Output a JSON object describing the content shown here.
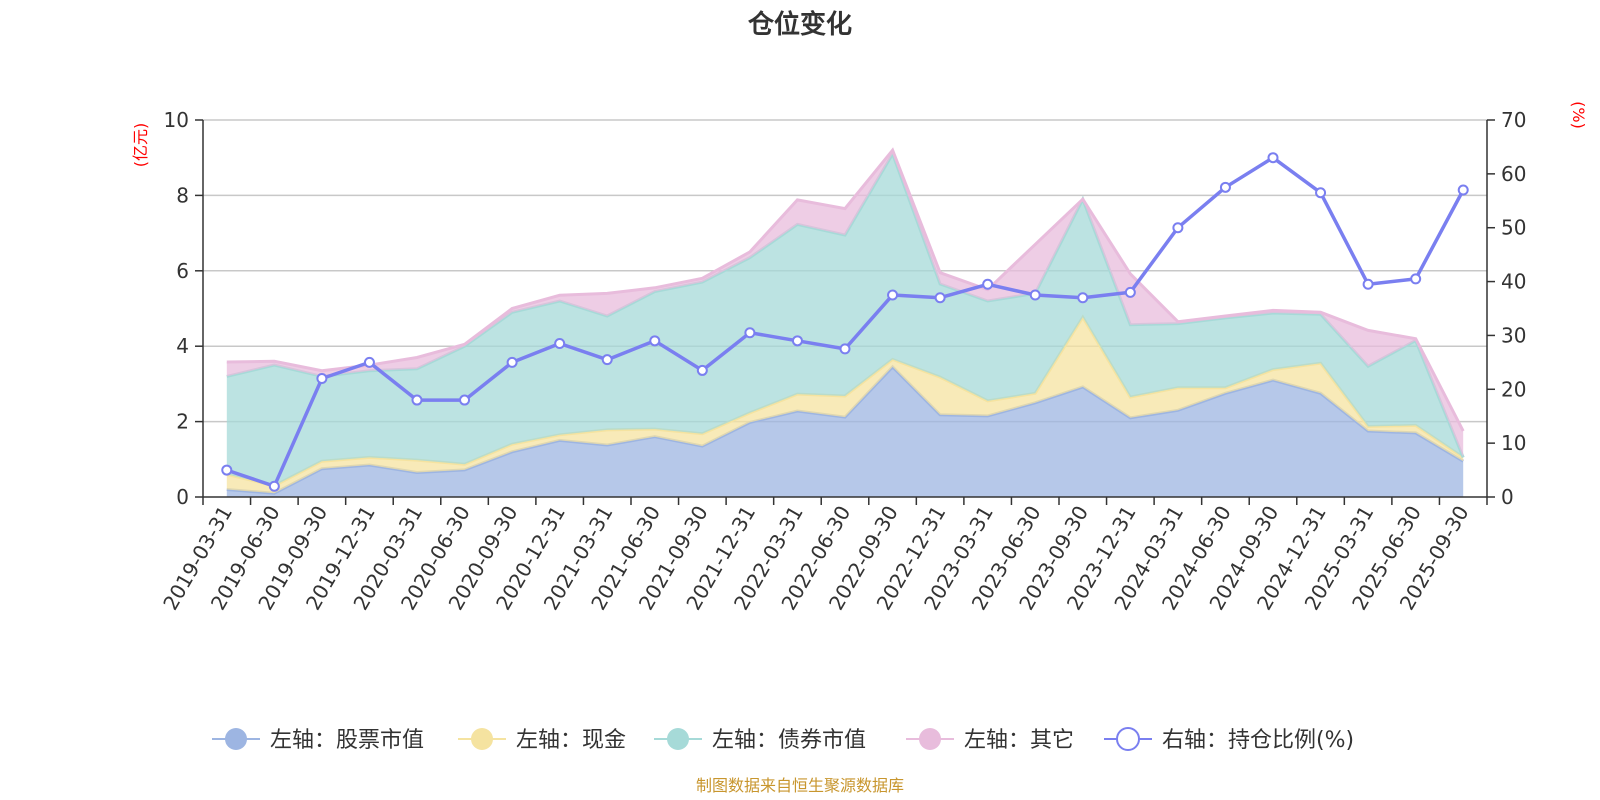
{
  "chart_data": {
    "type": "area",
    "title": "仓位变化",
    "left_axis_unit": "(亿元)",
    "right_axis_unit": "(%)",
    "ylim_left": [
      0,
      10
    ],
    "yticks_left": [
      0,
      2,
      4,
      6,
      8,
      10
    ],
    "ylim_right": [
      0,
      70
    ],
    "yticks_right": [
      0,
      10,
      20,
      30,
      40,
      50,
      60,
      70
    ],
    "categories": [
      "2019-03-31",
      "2019-06-30",
      "2019-09-30",
      "2019-12-31",
      "2020-03-31",
      "2020-06-30",
      "2020-09-30",
      "2020-12-31",
      "2021-03-31",
      "2021-06-30",
      "2021-09-30",
      "2021-12-31",
      "2022-03-31",
      "2022-06-30",
      "2022-09-30",
      "2022-12-31",
      "2023-03-31",
      "2023-06-30",
      "2023-09-30",
      "2023-12-31",
      "2024-03-31",
      "2024-06-30",
      "2024-09-30",
      "2024-12-31",
      "2025-03-31",
      "2025-06-30",
      "2025-09-30"
    ],
    "series": [
      {
        "name": "左轴：股票市值",
        "axis": "left",
        "stacked": true,
        "color": "#9db5e2",
        "values": [
          0.2,
          0.1,
          0.75,
          0.85,
          0.65,
          0.72,
          1.2,
          1.5,
          1.38,
          1.6,
          1.35,
          1.98,
          2.28,
          2.12,
          3.45,
          2.18,
          2.15,
          2.5,
          2.92,
          2.1,
          2.3,
          2.75,
          3.1,
          2.75,
          1.75,
          1.7,
          0.95
        ]
      },
      {
        "name": "左轴：现金",
        "axis": "left",
        "stacked": true,
        "color": "#f5e3a0",
        "values": [
          0.4,
          0.2,
          0.2,
          0.2,
          0.33,
          0.15,
          0.2,
          0.15,
          0.4,
          0.2,
          0.33,
          0.25,
          0.45,
          0.56,
          0.2,
          1.0,
          0.4,
          0.25,
          1.85,
          0.55,
          0.6,
          0.15,
          0.28,
          0.8,
          0.12,
          0.2,
          0.1
        ]
      },
      {
        "name": "左轴：债券市值",
        "axis": "left",
        "stacked": true,
        "color": "#a6dad8",
        "values": [
          2.6,
          3.2,
          2.25,
          2.3,
          2.42,
          3.13,
          3.5,
          3.55,
          3.02,
          3.65,
          4.02,
          4.12,
          4.5,
          4.27,
          5.45,
          2.47,
          2.65,
          2.65,
          3.13,
          1.92,
          1.7,
          1.85,
          1.5,
          1.3,
          1.6,
          2.25,
          0.0
        ]
      },
      {
        "name": "左轴：其它",
        "axis": "left",
        "stacked": true,
        "color": "#e8bcdc",
        "values": [
          0.38,
          0.1,
          0.15,
          0.15,
          0.3,
          0.05,
          0.1,
          0.15,
          0.6,
          0.1,
          0.1,
          0.15,
          0.65,
          0.7,
          0.1,
          0.3,
          0.3,
          1.3,
          0.0,
          1.35,
          0.05,
          0.05,
          0.07,
          0.05,
          0.95,
          0.05,
          0.7
        ]
      },
      {
        "name": "右轴：持仓比例(%)",
        "axis": "right",
        "stacked": false,
        "color": "#7a7ff0",
        "values": [
          5,
          2,
          22,
          25,
          18,
          18,
          25,
          28.5,
          25.5,
          29,
          23.5,
          30.5,
          29,
          27.5,
          37.5,
          37,
          39.5,
          37.5,
          37,
          38,
          50,
          57.5,
          63,
          56.5,
          39.5,
          40.5,
          57
        ]
      }
    ]
  },
  "source_text": "制图数据来自恒生聚源数据库"
}
